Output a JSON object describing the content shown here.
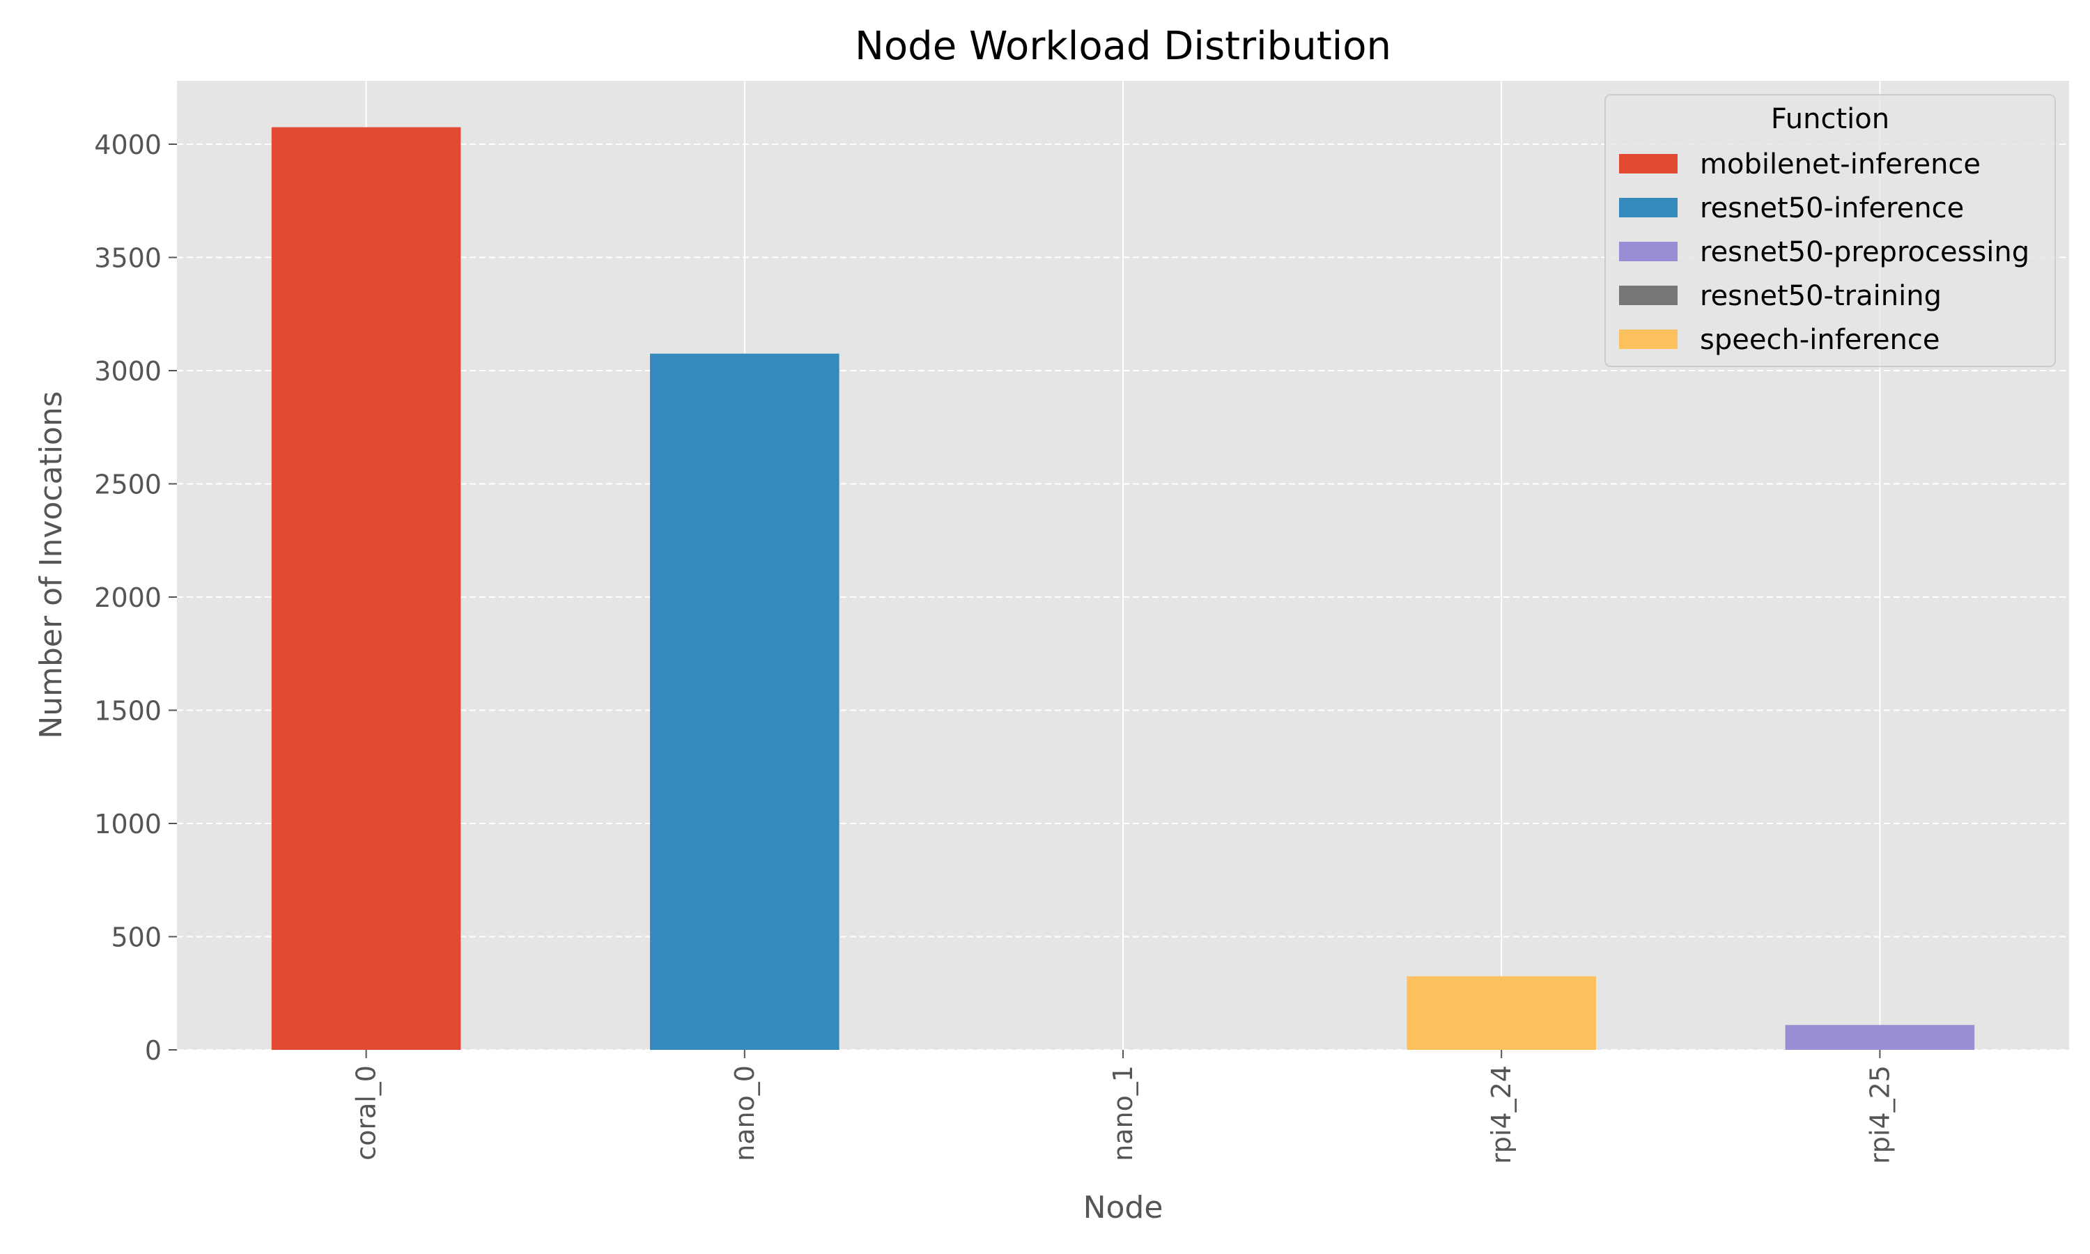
{
  "chart_data": {
    "type": "bar",
    "stacked": true,
    "title": "Node Workload Distribution",
    "xlabel": "Node",
    "ylabel": "Number of Invocations",
    "categories": [
      "coral_0",
      "nano_0",
      "nano_1",
      "rpi4_24",
      "rpi4_25"
    ],
    "ylim": [
      0,
      4280
    ],
    "yticks": [
      0,
      500,
      1000,
      1500,
      2000,
      2500,
      3000,
      3500,
      4000
    ],
    "grid": true,
    "legend": {
      "title": "Function",
      "placement": "top-right"
    },
    "series": [
      {
        "name": "mobilenet-inference",
        "color": "#E24A33",
        "values": [
          4075,
          0,
          0,
          0,
          0
        ]
      },
      {
        "name": "resnet50-inference",
        "color": "#348ABD",
        "values": [
          0,
          3075,
          0,
          0,
          0
        ]
      },
      {
        "name": "resnet50-preprocessing",
        "color": "#988ED5",
        "values": [
          0,
          0,
          0,
          0,
          110
        ]
      },
      {
        "name": "resnet50-training",
        "color": "#777777",
        "values": [
          0,
          0,
          0,
          0,
          0
        ]
      },
      {
        "name": "speech-inference",
        "color": "#FBC15E",
        "values": [
          0,
          0,
          0,
          325,
          0
        ]
      }
    ]
  }
}
